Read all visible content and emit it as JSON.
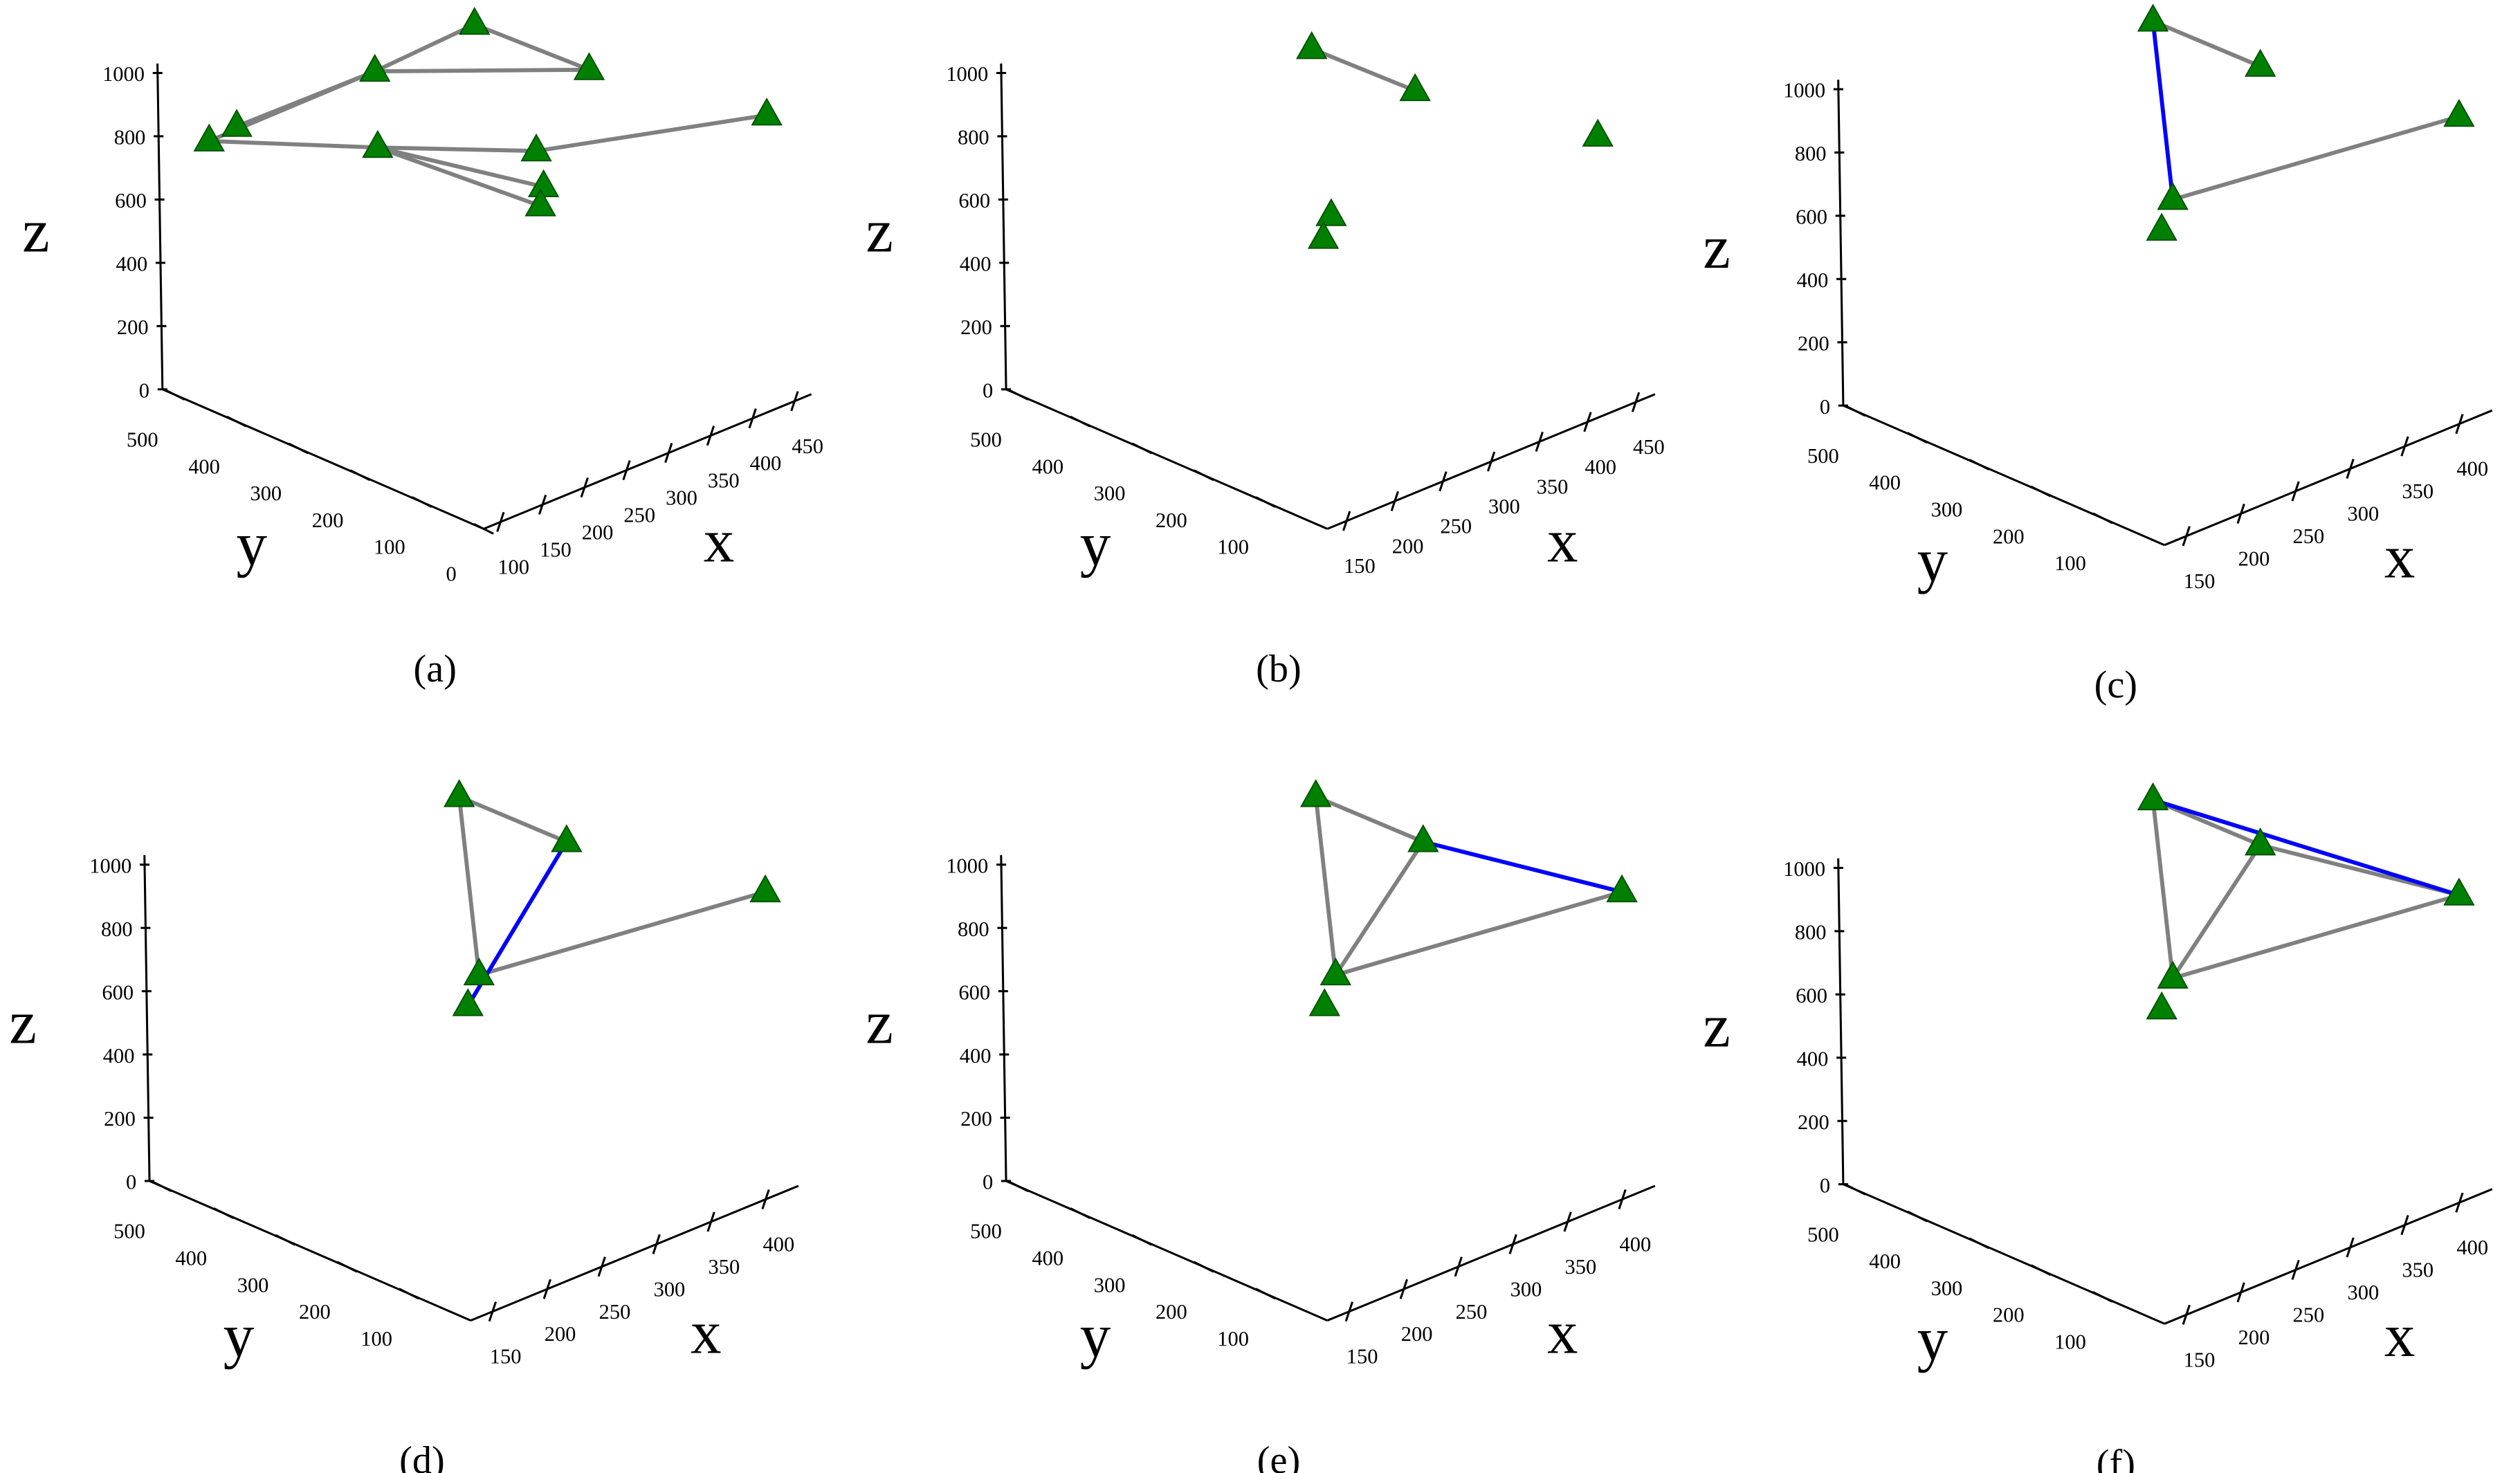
{
  "chart_data": [
    {
      "type": "scatter3d",
      "caption": "(a)",
      "xlabel": "x",
      "ylabel": "y",
      "zlabel": "z",
      "xlim": [
        80,
        470
      ],
      "ylim": [
        0,
        520
      ],
      "zlim": [
        0,
        1000
      ],
      "xticks": [
        100,
        150,
        200,
        250,
        300,
        350,
        400,
        450
      ],
      "yticks": [
        0,
        100,
        200,
        300,
        400,
        500
      ],
      "zticks": [
        0,
        200,
        400,
        600,
        800,
        1000
      ],
      "marker_color": "#008000",
      "x": [
        102,
        116,
        186,
        267,
        364,
        188,
        300,
        308,
        304,
        460
      ],
      "y": [
        468,
        442,
        312,
        260,
        208,
        312,
        208,
        208,
        208,
        52
      ],
      "z": [
        805,
        858,
        1066,
        1170,
        965,
        823,
        778,
        656,
        600,
        849
      ],
      "edges": [
        {
          "from": 0,
          "to": 2,
          "color": "#808080"
        },
        {
          "from": 1,
          "to": 2,
          "color": "#808080"
        },
        {
          "from": 2,
          "to": 3,
          "color": "#808080"
        },
        {
          "from": 3,
          "to": 4,
          "color": "#808080"
        },
        {
          "from": 2,
          "to": 4,
          "color": "#808080"
        },
        {
          "from": 0,
          "to": 5,
          "color": "#808080"
        },
        {
          "from": 5,
          "to": 6,
          "color": "#808080"
        },
        {
          "from": 6,
          "to": 9,
          "color": "#808080"
        },
        {
          "from": 5,
          "to": 7,
          "color": "#808080"
        },
        {
          "from": 5,
          "to": 8,
          "color": "#808080"
        }
      ]
    },
    {
      "type": "scatter3d",
      "caption": "(b)",
      "xlabel": "x",
      "ylabel": "y",
      "zlabel": "z",
      "xlim": [
        130,
        470
      ],
      "ylim": [
        0,
        520
      ],
      "zlim": [
        0,
        1000
      ],
      "xticks": [
        150,
        200,
        250,
        300,
        350,
        400,
        450
      ],
      "yticks": [
        100,
        200,
        300,
        400,
        500
      ],
      "zticks": [
        0,
        200,
        400,
        600,
        800,
        1000
      ],
      "marker_color": "#008000",
      "x": [
        286,
        359,
        448,
        287,
        295
      ],
      "y": [
        260,
        208,
        52,
        234,
        260
      ],
      "z": [
        1102,
        922,
        799,
        595,
        491
      ],
      "edges": [
        {
          "from": 0,
          "to": 1,
          "color": "#808080"
        }
      ]
    },
    {
      "type": "scatter3d",
      "caption": "(c)",
      "xlabel": "x",
      "ylabel": "y",
      "zlabel": "z",
      "xlim": [
        130,
        430
      ],
      "ylim": [
        0,
        520
      ],
      "zlim": [
        0,
        1000
      ],
      "xticks": [
        150,
        200,
        250,
        300,
        350,
        400
      ],
      "yticks": [
        100,
        200,
        300,
        400,
        500
      ],
      "zticks": [
        0,
        200,
        400,
        600,
        800,
        1000
      ],
      "marker_color": "#008000",
      "x": [
        272,
        340,
        433,
        273,
        277
      ],
      "y": [
        260,
        208,
        52,
        234,
        260
      ],
      "z": [
        1234,
        1039,
        881,
        691,
        566
      ],
      "edges": [
        {
          "from": 0,
          "to": 1,
          "color": "#808080"
        },
        {
          "from": 0,
          "to": 3,
          "color": "#0000ff"
        },
        {
          "from": 3,
          "to": 2,
          "color": "#808080"
        }
      ]
    },
    {
      "type": "scatter3d",
      "caption": "(d)",
      "xlabel": "x",
      "ylabel": "y",
      "zlabel": "z",
      "xlim": [
        130,
        430
      ],
      "ylim": [
        0,
        520
      ],
      "zlim": [
        0,
        1000
      ],
      "xticks": [
        150,
        200,
        250,
        300,
        350,
        400
      ],
      "yticks": [
        100,
        200,
        300,
        400,
        500
      ],
      "zticks": [
        0,
        200,
        400,
        600,
        800,
        1000
      ],
      "marker_color": "#008000",
      "x": [
        272,
        340,
        433,
        273,
        277
      ],
      "y": [
        260,
        208,
        52,
        234,
        260
      ],
      "z": [
        1234,
        1039,
        881,
        691,
        566
      ],
      "edges": [
        {
          "from": 0,
          "to": 1,
          "color": "#808080"
        },
        {
          "from": 0,
          "to": 3,
          "color": "#808080"
        },
        {
          "from": 3,
          "to": 2,
          "color": "#808080"
        },
        {
          "from": 1,
          "to": 4,
          "color": "#0000ff"
        }
      ]
    },
    {
      "type": "scatter3d",
      "caption": "(e)",
      "xlabel": "x",
      "ylabel": "y",
      "zlabel": "z",
      "xlim": [
        130,
        430
      ],
      "ylim": [
        0,
        520
      ],
      "zlim": [
        0,
        1000
      ],
      "xticks": [
        150,
        200,
        250,
        300,
        350,
        400
      ],
      "yticks": [
        100,
        200,
        300,
        400,
        500
      ],
      "zticks": [
        0,
        200,
        400,
        600,
        800,
        1000
      ],
      "marker_color": "#008000",
      "x": [
        272,
        340,
        433,
        273,
        277
      ],
      "y": [
        260,
        208,
        52,
        234,
        260
      ],
      "z": [
        1234,
        1039,
        881,
        691,
        566
      ],
      "edges": [
        {
          "from": 0,
          "to": 1,
          "color": "#808080"
        },
        {
          "from": 0,
          "to": 3,
          "color": "#808080"
        },
        {
          "from": 3,
          "to": 2,
          "color": "#808080"
        },
        {
          "from": 1,
          "to": 3,
          "color": "#808080"
        },
        {
          "from": 1,
          "to": 2,
          "color": "#0000ff"
        }
      ]
    },
    {
      "type": "scatter3d",
      "caption": "(f)",
      "xlabel": "x",
      "ylabel": "y",
      "zlabel": "z",
      "xlim": [
        130,
        430
      ],
      "ylim": [
        0,
        520
      ],
      "zlim": [
        0,
        1000
      ],
      "xticks": [
        150,
        200,
        250,
        300,
        350,
        400
      ],
      "yticks": [
        100,
        200,
        300,
        400,
        500
      ],
      "zticks": [
        0,
        200,
        400,
        600,
        800,
        1000
      ],
      "marker_color": "#008000",
      "x": [
        272,
        340,
        433,
        273,
        277
      ],
      "y": [
        260,
        208,
        52,
        234,
        260
      ],
      "z": [
        1234,
        1039,
        881,
        691,
        566
      ],
      "edges": [
        {
          "from": 0,
          "to": 1,
          "color": "#808080"
        },
        {
          "from": 0,
          "to": 3,
          "color": "#808080"
        },
        {
          "from": 3,
          "to": 2,
          "color": "#808080"
        },
        {
          "from": 1,
          "to": 3,
          "color": "#808080"
        },
        {
          "from": 1,
          "to": 2,
          "color": "#808080"
        },
        {
          "from": 0,
          "to": 2,
          "color": "#0000ff"
        }
      ]
    }
  ]
}
